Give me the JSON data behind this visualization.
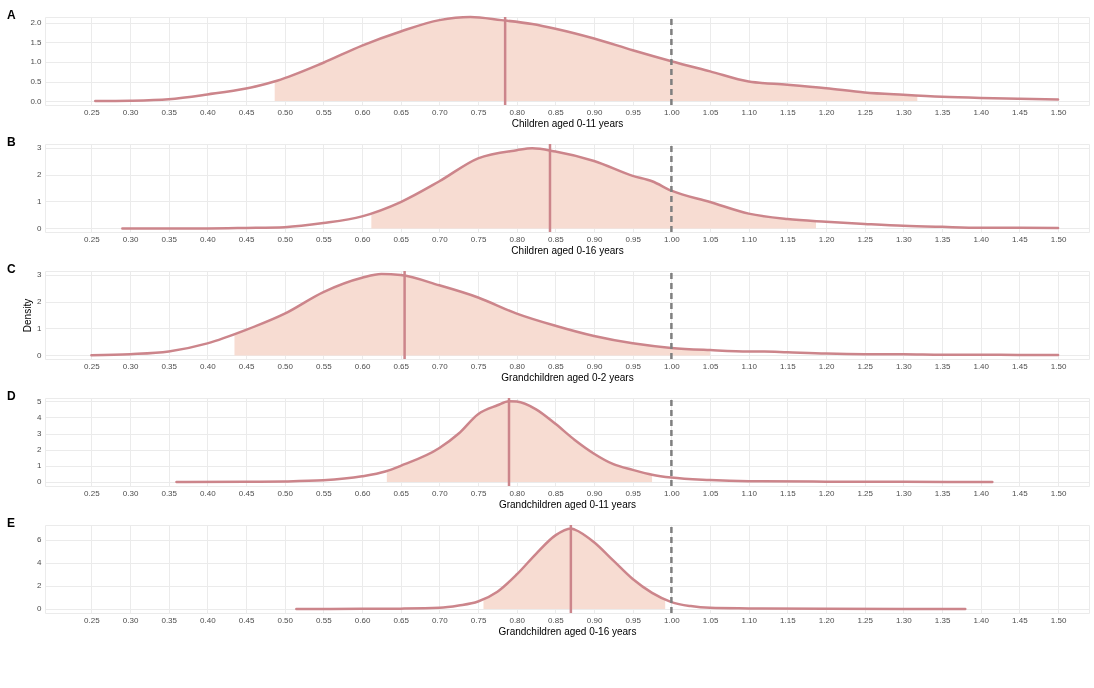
{
  "chart_data": [
    {
      "type": "line",
      "title": "A",
      "xlabel": "Children aged 0-11 years",
      "xlim": [
        0.19,
        1.54
      ],
      "ylim": [
        -0.1,
        2.15
      ],
      "grid": true,
      "xticks": [
        {
          "value": 0.25,
          "label": "0.25"
        },
        {
          "value": 0.3,
          "label": "0.30"
        },
        {
          "value": 0.35,
          "label": "0.35"
        },
        {
          "value": 0.4,
          "label": "0.40"
        },
        {
          "value": 0.45,
          "label": "0.45"
        },
        {
          "value": 0.5,
          "label": "0.50"
        },
        {
          "value": 0.55,
          "label": "0.55"
        },
        {
          "value": 0.6,
          "label": "0.60"
        },
        {
          "value": 0.65,
          "label": "0.65"
        },
        {
          "value": 0.7,
          "label": "0.70"
        },
        {
          "value": 0.75,
          "label": "0.75"
        },
        {
          "value": 0.8,
          "label": "0.80"
        },
        {
          "value": 0.85,
          "label": "0.85"
        },
        {
          "value": 0.9,
          "label": "0.90"
        },
        {
          "value": 0.95,
          "label": "0.95"
        },
        {
          "value": 1,
          "label": "1.00"
        },
        {
          "value": 1.05,
          "label": "1.05"
        },
        {
          "value": 1.1,
          "label": "1.10"
        },
        {
          "value": 1.15,
          "label": "1.15"
        },
        {
          "value": 1.2,
          "label": "1.20"
        },
        {
          "value": 1.25,
          "label": "1.25"
        },
        {
          "value": 1.3,
          "label": "1.30"
        },
        {
          "value": 1.35,
          "label": "1.35"
        },
        {
          "value": 1.4,
          "label": "1.40"
        },
        {
          "value": 1.45,
          "label": "1.45"
        },
        {
          "value": 1.5,
          "label": "1.50"
        }
      ],
      "yticks": [
        {
          "value": 0,
          "label": "0.0"
        },
        {
          "value": 0.5,
          "label": "0.5"
        },
        {
          "value": 1,
          "label": "1.0"
        },
        {
          "value": 1.5,
          "label": "1.5"
        },
        {
          "value": 2,
          "label": "2.0"
        }
      ],
      "series": [
        {
          "type": "area",
          "color": "#f7dcd2",
          "x": [
            0.487,
            0.55,
            0.6,
            0.65,
            0.7,
            0.74,
            0.78,
            0.82,
            0.85,
            0.9,
            0.95,
            1.0,
            1.05,
            1.1,
            1.15,
            1.2,
            1.25,
            1.3,
            1.318
          ],
          "values": [
            0.5,
            0.98,
            1.42,
            1.78,
            2.07,
            2.15,
            2.07,
            1.97,
            1.85,
            1.6,
            1.3,
            1.02,
            0.76,
            0.5,
            0.42,
            0.33,
            0.22,
            0.16,
            0.15
          ]
        },
        {
          "type": "line",
          "color": "#cc858b",
          "x": [
            0.255,
            0.3,
            0.35,
            0.4,
            0.45,
            0.49,
            0.55,
            0.6,
            0.65,
            0.7,
            0.74,
            0.78,
            0.82,
            0.85,
            0.9,
            0.95,
            1.0,
            1.05,
            1.1,
            1.15,
            1.2,
            1.25,
            1.3,
            1.35,
            1.4,
            1.45,
            1.5
          ],
          "values": [
            0,
            0.01,
            0.05,
            0.17,
            0.32,
            0.52,
            0.98,
            1.42,
            1.78,
            2.07,
            2.15,
            2.07,
            1.97,
            1.85,
            1.6,
            1.3,
            1.02,
            0.76,
            0.5,
            0.42,
            0.33,
            0.22,
            0.16,
            0.11,
            0.08,
            0.06,
            0.04
          ]
        }
      ],
      "ref_lines": [
        {
          "axis": "x",
          "value": 0.785,
          "color": "#cc858b"
        },
        {
          "axis": "x",
          "value": 1,
          "color": "#7f7f7f",
          "line_style": "dashed"
        }
      ]
    },
    {
      "type": "line",
      "title": "B",
      "xlabel": "Children aged 0-16 years",
      "xlim": [
        0.19,
        1.54
      ],
      "ylim": [
        -0.13,
        3.13
      ],
      "grid": true,
      "xticks": [
        {
          "value": 0.25,
          "label": "0.25"
        },
        {
          "value": 0.3,
          "label": "0.30"
        },
        {
          "value": 0.35,
          "label": "0.35"
        },
        {
          "value": 0.4,
          "label": "0.40"
        },
        {
          "value": 0.45,
          "label": "0.45"
        },
        {
          "value": 0.5,
          "label": "0.50"
        },
        {
          "value": 0.55,
          "label": "0.55"
        },
        {
          "value": 0.6,
          "label": "0.60"
        },
        {
          "value": 0.65,
          "label": "0.65"
        },
        {
          "value": 0.7,
          "label": "0.70"
        },
        {
          "value": 0.75,
          "label": "0.75"
        },
        {
          "value": 0.8,
          "label": "0.80"
        },
        {
          "value": 0.85,
          "label": "0.85"
        },
        {
          "value": 0.9,
          "label": "0.90"
        },
        {
          "value": 0.95,
          "label": "0.95"
        },
        {
          "value": 1,
          "label": "1.00"
        },
        {
          "value": 1.05,
          "label": "1.05"
        },
        {
          "value": 1.1,
          "label": "1.10"
        },
        {
          "value": 1.15,
          "label": "1.15"
        },
        {
          "value": 1.2,
          "label": "1.20"
        },
        {
          "value": 1.25,
          "label": "1.25"
        },
        {
          "value": 1.3,
          "label": "1.30"
        },
        {
          "value": 1.35,
          "label": "1.35"
        },
        {
          "value": 1.4,
          "label": "1.40"
        },
        {
          "value": 1.45,
          "label": "1.45"
        },
        {
          "value": 1.5,
          "label": "1.50"
        }
      ],
      "yticks": [
        0,
        1,
        2,
        3
      ],
      "series": [
        {
          "type": "area",
          "color": "#f7dcd2",
          "x": [
            0.612,
            0.65,
            0.7,
            0.75,
            0.8,
            0.82,
            0.85,
            0.9,
            0.95,
            0.975,
            1.0,
            1.05,
            1.1,
            1.15,
            1.187
          ],
          "values": [
            0.5,
            0.98,
            1.75,
            2.6,
            2.9,
            2.97,
            2.85,
            2.5,
            1.95,
            1.75,
            1.4,
            0.98,
            0.55,
            0.35,
            0.26
          ]
        },
        {
          "type": "line",
          "color": "#cc858b",
          "x": [
            0.29,
            0.4,
            0.45,
            0.5,
            0.55,
            0.6,
            0.65,
            0.7,
            0.75,
            0.8,
            0.82,
            0.85,
            0.9,
            0.95,
            0.975,
            1.0,
            1.05,
            1.1,
            1.15,
            1.2,
            1.25,
            1.3,
            1.35,
            1.4,
            1.45,
            1.5
          ],
          "values": [
            0,
            0,
            0.02,
            0.05,
            0.2,
            0.45,
            0.98,
            1.75,
            2.6,
            2.9,
            2.97,
            2.85,
            2.5,
            1.95,
            1.75,
            1.4,
            0.98,
            0.55,
            0.35,
            0.25,
            0.17,
            0.1,
            0.06,
            0.03,
            0.03,
            0.02
          ]
        }
      ],
      "ref_lines": [
        {
          "axis": "x",
          "value": 0.843,
          "color": "#cc858b"
        },
        {
          "axis": "x",
          "value": 1,
          "color": "#7f7f7f",
          "line_style": "dashed"
        }
      ]
    },
    {
      "type": "line",
      "title": "C",
      "xlabel": "Grandchildren aged 0-2 years",
      "ylabel": "Density",
      "xlim": [
        0.19,
        1.54
      ],
      "ylim": [
        -0.13,
        3.13
      ],
      "grid": true,
      "xticks": [
        {
          "value": 0.25,
          "label": "0.25"
        },
        {
          "value": 0.3,
          "label": "0.30"
        },
        {
          "value": 0.35,
          "label": "0.35"
        },
        {
          "value": 0.4,
          "label": "0.40"
        },
        {
          "value": 0.45,
          "label": "0.45"
        },
        {
          "value": 0.5,
          "label": "0.50"
        },
        {
          "value": 0.55,
          "label": "0.55"
        },
        {
          "value": 0.6,
          "label": "0.60"
        },
        {
          "value": 0.65,
          "label": "0.65"
        },
        {
          "value": 0.7,
          "label": "0.70"
        },
        {
          "value": 0.75,
          "label": "0.75"
        },
        {
          "value": 0.8,
          "label": "0.80"
        },
        {
          "value": 0.85,
          "label": "0.85"
        },
        {
          "value": 0.9,
          "label": "0.90"
        },
        {
          "value": 0.95,
          "label": "0.95"
        },
        {
          "value": 1,
          "label": "1.00"
        },
        {
          "value": 1.05,
          "label": "1.05"
        },
        {
          "value": 1.1,
          "label": "1.10"
        },
        {
          "value": 1.15,
          "label": "1.15"
        },
        {
          "value": 1.2,
          "label": "1.20"
        },
        {
          "value": 1.25,
          "label": "1.25"
        },
        {
          "value": 1.3,
          "label": "1.30"
        },
        {
          "value": 1.35,
          "label": "1.35"
        },
        {
          "value": 1.4,
          "label": "1.40"
        },
        {
          "value": 1.45,
          "label": "1.45"
        },
        {
          "value": 1.5,
          "label": "1.50"
        }
      ],
      "yticks": [
        0,
        1,
        2,
        3
      ],
      "series": [
        {
          "type": "area",
          "color": "#f7dcd2",
          "x": [
            0.435,
            0.45,
            0.5,
            0.55,
            0.6,
            0.625,
            0.65,
            0.7,
            0.75,
            0.8,
            0.85,
            0.9,
            0.95,
            1.0,
            1.05
          ],
          "values": [
            0.8,
            0.95,
            1.55,
            2.35,
            2.88,
            3.02,
            2.98,
            2.6,
            2.15,
            1.55,
            1.1,
            0.72,
            0.45,
            0.28,
            0.2
          ]
        },
        {
          "type": "line",
          "color": "#cc858b",
          "x": [
            0.25,
            0.3,
            0.35,
            0.4,
            0.45,
            0.5,
            0.55,
            0.6,
            0.625,
            0.65,
            0.7,
            0.75,
            0.8,
            0.85,
            0.9,
            0.95,
            1.0,
            1.05,
            1.1,
            1.12,
            1.15,
            1.2,
            1.25,
            1.3,
            1.35,
            1.4,
            1.45,
            1.5
          ],
          "values": [
            0.01,
            0.05,
            0.15,
            0.45,
            0.95,
            1.55,
            2.35,
            2.88,
            3.02,
            2.98,
            2.6,
            2.15,
            1.55,
            1.1,
            0.72,
            0.45,
            0.28,
            0.2,
            0.15,
            0.15,
            0.12,
            0.07,
            0.05,
            0.05,
            0.03,
            0.03,
            0.02,
            0.02
          ]
        }
      ],
      "ref_lines": [
        {
          "axis": "x",
          "value": 0.655,
          "color": "#cc858b"
        },
        {
          "axis": "x",
          "value": 1,
          "color": "#7f7f7f",
          "line_style": "dashed"
        }
      ]
    },
    {
      "type": "line",
      "title": "D",
      "xlabel": "Grandchildren aged 0-11 years",
      "xlim": [
        0.19,
        1.54
      ],
      "ylim": [
        -0.25,
        5.2
      ],
      "grid": true,
      "xticks": [
        {
          "value": 0.25,
          "label": "0.25"
        },
        {
          "value": 0.3,
          "label": "0.30"
        },
        {
          "value": 0.35,
          "label": "0.35"
        },
        {
          "value": 0.4,
          "label": "0.40"
        },
        {
          "value": 0.45,
          "label": "0.45"
        },
        {
          "value": 0.5,
          "label": "0.50"
        },
        {
          "value": 0.55,
          "label": "0.55"
        },
        {
          "value": 0.6,
          "label": "0.60"
        },
        {
          "value": 0.65,
          "label": "0.65"
        },
        {
          "value": 0.7,
          "label": "0.70"
        },
        {
          "value": 0.75,
          "label": "0.75"
        },
        {
          "value": 0.8,
          "label": "0.80"
        },
        {
          "value": 0.85,
          "label": "0.85"
        },
        {
          "value": 0.9,
          "label": "0.90"
        },
        {
          "value": 0.95,
          "label": "0.95"
        },
        {
          "value": 1,
          "label": "1.00"
        },
        {
          "value": 1.05,
          "label": "1.05"
        },
        {
          "value": 1.1,
          "label": "1.10"
        },
        {
          "value": 1.15,
          "label": "1.15"
        },
        {
          "value": 1.2,
          "label": "1.20"
        },
        {
          "value": 1.25,
          "label": "1.25"
        },
        {
          "value": 1.3,
          "label": "1.30"
        },
        {
          "value": 1.35,
          "label": "1.35"
        },
        {
          "value": 1.4,
          "label": "1.40"
        },
        {
          "value": 1.45,
          "label": "1.45"
        },
        {
          "value": 1.5,
          "label": "1.50"
        }
      ],
      "yticks": [
        0,
        1,
        2,
        3,
        4,
        5
      ],
      "series": [
        {
          "type": "area",
          "color": "#f7dcd2",
          "x": [
            0.632,
            0.65,
            0.7,
            0.725,
            0.75,
            0.775,
            0.79,
            0.8,
            0.825,
            0.85,
            0.875,
            0.9,
            0.925,
            0.95,
            0.975
          ],
          "values": [
            0.7,
            1.0,
            2.1,
            3.0,
            4.2,
            4.75,
            5.0,
            4.98,
            4.5,
            3.6,
            2.6,
            1.75,
            1.1,
            0.75,
            0.45
          ]
        },
        {
          "type": "line",
          "color": "#cc858b",
          "x": [
            0.36,
            0.45,
            0.5,
            0.55,
            0.6,
            0.63,
            0.65,
            0.7,
            0.725,
            0.75,
            0.775,
            0.79,
            0.8,
            0.825,
            0.85,
            0.875,
            0.9,
            0.925,
            0.95,
            0.975,
            1.0,
            1.05,
            1.1,
            1.2,
            1.3,
            1.415
          ],
          "values": [
            0,
            0.01,
            0.03,
            0.1,
            0.35,
            0.65,
            1.0,
            2.1,
            3.0,
            4.2,
            4.75,
            5.0,
            4.98,
            4.5,
            3.6,
            2.6,
            1.75,
            1.1,
            0.75,
            0.45,
            0.27,
            0.12,
            0.05,
            0.02,
            0.01,
            0
          ]
        }
      ],
      "ref_lines": [
        {
          "axis": "x",
          "value": 0.79,
          "color": "#cc858b"
        },
        {
          "axis": "x",
          "value": 1,
          "color": "#7f7f7f",
          "line_style": "dashed"
        }
      ]
    },
    {
      "type": "line",
      "title": "E",
      "xlabel": "Grandchildren aged 0-16 years",
      "xlim": [
        0.19,
        1.54
      ],
      "ylim": [
        -0.35,
        7.3
      ],
      "grid": true,
      "xticks": [
        {
          "value": 0.25,
          "label": "0.25"
        },
        {
          "value": 0.3,
          "label": "0.30"
        },
        {
          "value": 0.35,
          "label": "0.35"
        },
        {
          "value": 0.4,
          "label": "0.40"
        },
        {
          "value": 0.45,
          "label": "0.45"
        },
        {
          "value": 0.5,
          "label": "0.50"
        },
        {
          "value": 0.55,
          "label": "0.55"
        },
        {
          "value": 0.6,
          "label": "0.60"
        },
        {
          "value": 0.65,
          "label": "0.65"
        },
        {
          "value": 0.7,
          "label": "0.70"
        },
        {
          "value": 0.75,
          "label": "0.75"
        },
        {
          "value": 0.8,
          "label": "0.80"
        },
        {
          "value": 0.85,
          "label": "0.85"
        },
        {
          "value": 0.9,
          "label": "0.90"
        },
        {
          "value": 0.95,
          "label": "0.95"
        },
        {
          "value": 1,
          "label": "1.00"
        },
        {
          "value": 1.05,
          "label": "1.05"
        },
        {
          "value": 1.1,
          "label": "1.10"
        },
        {
          "value": 1.15,
          "label": "1.15"
        },
        {
          "value": 1.2,
          "label": "1.20"
        },
        {
          "value": 1.25,
          "label": "1.25"
        },
        {
          "value": 1.3,
          "label": "1.30"
        },
        {
          "value": 1.35,
          "label": "1.35"
        },
        {
          "value": 1.4,
          "label": "1.40"
        },
        {
          "value": 1.45,
          "label": "1.45"
        },
        {
          "value": 1.5,
          "label": "1.50"
        }
      ],
      "yticks": [
        0,
        2,
        4,
        6
      ],
      "series": [
        {
          "type": "area",
          "color": "#f7dcd2",
          "x": [
            0.757,
            0.775,
            0.8,
            0.825,
            0.85,
            0.87,
            0.875,
            0.9,
            0.925,
            0.95,
            0.975,
            0.992
          ],
          "values": [
            0.8,
            1.5,
            3.0,
            4.8,
            6.4,
            7.0,
            6.9,
            5.8,
            4.2,
            2.6,
            1.4,
            0.9
          ]
        },
        {
          "type": "line",
          "color": "#cc858b",
          "x": [
            0.515,
            0.6,
            0.65,
            0.7,
            0.725,
            0.75,
            0.775,
            0.8,
            0.825,
            0.85,
            0.87,
            0.875,
            0.9,
            0.925,
            0.95,
            0.975,
            1.0,
            1.025,
            1.05,
            1.1,
            1.2,
            1.3,
            1.38
          ],
          "values": [
            0,
            0.01,
            0.03,
            0.1,
            0.3,
            0.65,
            1.5,
            3.0,
            4.8,
            6.4,
            7.0,
            6.9,
            5.8,
            4.2,
            2.6,
            1.4,
            0.6,
            0.25,
            0.1,
            0.05,
            0.01,
            0,
            0
          ]
        }
      ],
      "ref_lines": [
        {
          "axis": "x",
          "value": 0.87,
          "color": "#cc858b"
        },
        {
          "axis": "x",
          "value": 1,
          "color": "#7f7f7f",
          "line_style": "dashed"
        }
      ]
    }
  ]
}
